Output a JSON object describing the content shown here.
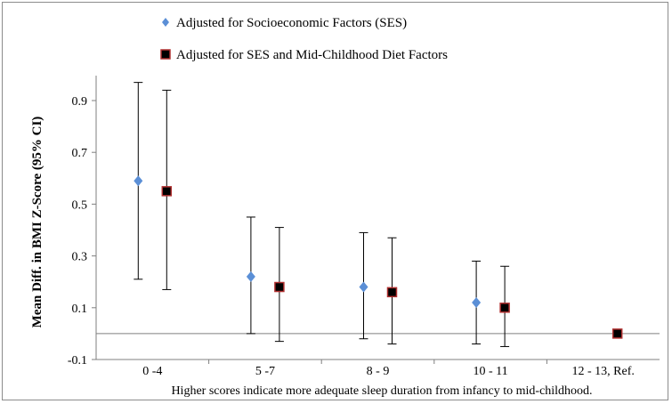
{
  "chart_data": {
    "type": "scatter",
    "categories": [
      "0 -4",
      "5 -7",
      "8 - 9",
      "10 - 11",
      "12 - 13, Ref."
    ],
    "series": [
      {
        "name": "Adjusted for Socioeconomic Factors (SES)",
        "marker": "diamond",
        "color": "#5b8fd6",
        "values": [
          0.59,
          0.22,
          0.18,
          0.12,
          null
        ],
        "ci_low": [
          0.21,
          0.0,
          -0.02,
          -0.04,
          null
        ],
        "ci_high": [
          0.97,
          0.45,
          0.39,
          0.28,
          null
        ]
      },
      {
        "name": "Adjusted for SES and Mid-Childhood Diet Factors",
        "marker": "square",
        "color": "#000000",
        "edge_color": "#b03030",
        "values": [
          0.55,
          0.18,
          0.16,
          0.1,
          0.0
        ],
        "ci_low": [
          0.17,
          -0.03,
          -0.04,
          -0.05,
          null
        ],
        "ci_high": [
          0.94,
          0.41,
          0.37,
          0.26,
          null
        ]
      }
    ],
    "title": "",
    "xlabel": "Higher scores indicate more adequate sleep duration from infancy to mid-childhood.",
    "ylabel": "Mean Diff. in BMI Z-Score (95% CI)",
    "ylim": [
      -0.1,
      0.97
    ],
    "yticks": [
      "-0.1",
      "0.1",
      "0.3",
      "0.5",
      "0.7",
      "0.9"
    ],
    "reference_line": 0,
    "grid": false,
    "legend_position": "top"
  }
}
